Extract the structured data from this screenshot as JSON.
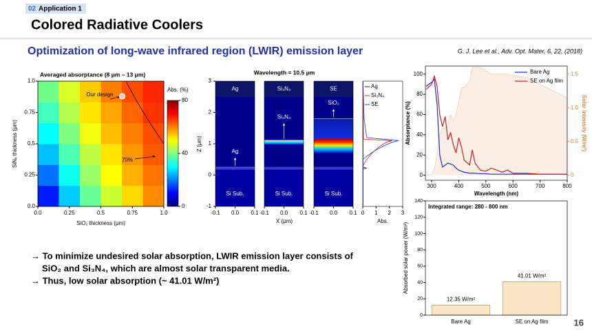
{
  "header": {
    "section_number": "02",
    "section": "Application 1",
    "title": "Colored Radiative Coolers"
  },
  "subtitle": "Optimization of long-wave infrared region (LWIR) emission layer",
  "citation": "G. J. Lee et al., Adv. Opt. Mater, 6, 22, (2018)",
  "chart_data": [
    {
      "type": "heatmap",
      "title": "Averaged absorptance (8 μm – 13 μm)",
      "x_label": "SiO₂ thickness (μm)",
      "y_label": "SiNₓ thickness (μm)",
      "xlim": [
        0,
        1
      ],
      "ylim": [
        0,
        1
      ],
      "xticks": [
        {
          "value": 0,
          "label": "0.0"
        },
        0.25,
        0.5,
        0.75,
        {
          "value": 1,
          "label": "1.0"
        }
      ],
      "yticks": [
        {
          "value": 0,
          "label": "0.0"
        },
        0.25,
        0.5,
        0.75,
        {
          "value": 1,
          "label": "1.0"
        }
      ],
      "values": [
        [
          12,
          26,
          38,
          46,
          53,
          59
        ],
        [
          19,
          31,
          42,
          50,
          56,
          61
        ],
        [
          25,
          36,
          45,
          52,
          58,
          63
        ],
        [
          30,
          40,
          49,
          55,
          60,
          64
        ],
        [
          35,
          44,
          52,
          57,
          62,
          66
        ],
        [
          39,
          47,
          54,
          60,
          64,
          67
        ]
      ],
      "colorbar_label": "Abs. (%)",
      "clim": [
        0,
        80
      ],
      "cticks": [
        0,
        40,
        80
      ],
      "marker": {
        "x": 0.67,
        "y": 0.88
      },
      "annotations": [
        "Our design",
        "70%"
      ]
    },
    {
      "type": "field",
      "title": "Wavelength = 10.5 μm",
      "y_label": "Z (μm)",
      "x_label": "X (μm)",
      "ylim": [
        -1,
        3
      ],
      "yticks": [
        -1,
        0,
        1,
        2,
        3
      ],
      "xlim": [
        -0.1,
        0.1
      ],
      "xticks": [
        -0.1,
        {
          "value": 0,
          "label": "0.0"
        },
        0.1
      ],
      "panels": [
        {
          "title": "Ag",
          "layer": "Ag",
          "substrate": "Si Sub."
        },
        {
          "title": "Si₃N₄",
          "layer": "Si₃N₄",
          "substrate": "Si Sub."
        },
        {
          "title": "SE",
          "layer": "SiO₂",
          "substrate": "Si Sub."
        }
      ],
      "abs_label": "Abs.",
      "abs_lim": [
        0,
        3
      ],
      "abs_ticks": [
        0,
        1,
        2,
        3
      ],
      "series": [
        {
          "name": "Ag",
          "color": "#222222"
        },
        {
          "name": "Si₃N₄",
          "color": "#d62728"
        },
        {
          "name": "SE",
          "color": "#1f3fd6"
        }
      ]
    },
    {
      "type": "line",
      "x_label": "Wavelength (nm)",
      "y_label": "Absorptance (%)",
      "y2_label": "Solar intensity (W/m²)",
      "x": [
        280,
        300,
        310,
        320,
        330,
        340,
        350,
        360,
        370,
        380,
        390,
        400,
        410,
        420,
        440,
        450,
        460,
        480,
        500,
        520,
        560,
        580,
        600,
        650,
        700,
        750,
        800
      ],
      "xlim": [
        277,
        800
      ],
      "xticks": [
        300,
        400,
        500,
        600,
        700,
        800
      ],
      "ylim": [
        -5,
        108
      ],
      "yticks": [
        0,
        20,
        40,
        60,
        80,
        100
      ],
      "y2lim": [
        -0.075,
        1.62
      ],
      "y2ticks": [
        0,
        0.5,
        {
          "value": 1,
          "label": "1.0"
        },
        1.5
      ],
      "legend": "upper right",
      "series": [
        {
          "name": "Bare Ag",
          "color": "#1f2fd0",
          "values": [
            88,
            92,
            95,
            70,
            20,
            8,
            10,
            12,
            11,
            10,
            7,
            5,
            4,
            3,
            2,
            2,
            2,
            1.5,
            1.5,
            1,
            1,
            1,
            1,
            1,
            1,
            1,
            1
          ]
        },
        {
          "name": "SE on Ag film",
          "color": "#c81e2a",
          "values": [
            85,
            90,
            98,
            88,
            60,
            48,
            58,
            35,
            42,
            30,
            22,
            37,
            28,
            15,
            10,
            25,
            12,
            5,
            4,
            7,
            3,
            5,
            2,
            2,
            1,
            1,
            1
          ]
        },
        {
          "color": "#f0c9a8",
          "axis": "y2",
          "values": [
            0,
            0.01,
            0.1,
            0.3,
            0.6,
            0.7,
            0.7,
            0.75,
            0.9,
            0.8,
            0.9,
            1.1,
            1.3,
            1.3,
            1.4,
            1.6,
            1.6,
            1.6,
            1.55,
            1.5,
            1.5,
            1.5,
            1.48,
            1.45,
            1.35,
            1.25,
            1.15
          ]
        }
      ]
    },
    {
      "type": "bar",
      "annotation": "Integrated range: 280 - 800 nm",
      "y_label": "Absorbed solar power (W/m²)",
      "categories": [
        "Bare Ag",
        "SE on Ag film"
      ],
      "values": [
        12.35,
        41.01
      ],
      "value_labels": [
        "12.35 W/m²",
        "41.01 W/m²"
      ],
      "color": "#fbe6c6",
      "ylim": [
        0,
        140
      ],
      "yticks": [
        0,
        20,
        40,
        60,
        80,
        100,
        120,
        140
      ]
    }
  ],
  "bullets": [
    "→ To minimize undesired solar absorption, LWIR emission layer consists of",
    "SiO₂ and Si₃N₄, which are almost solar transparent media.",
    "→ Thus, low solar absorption (~ 41.01 W/m²)"
  ],
  "page_number": "16"
}
